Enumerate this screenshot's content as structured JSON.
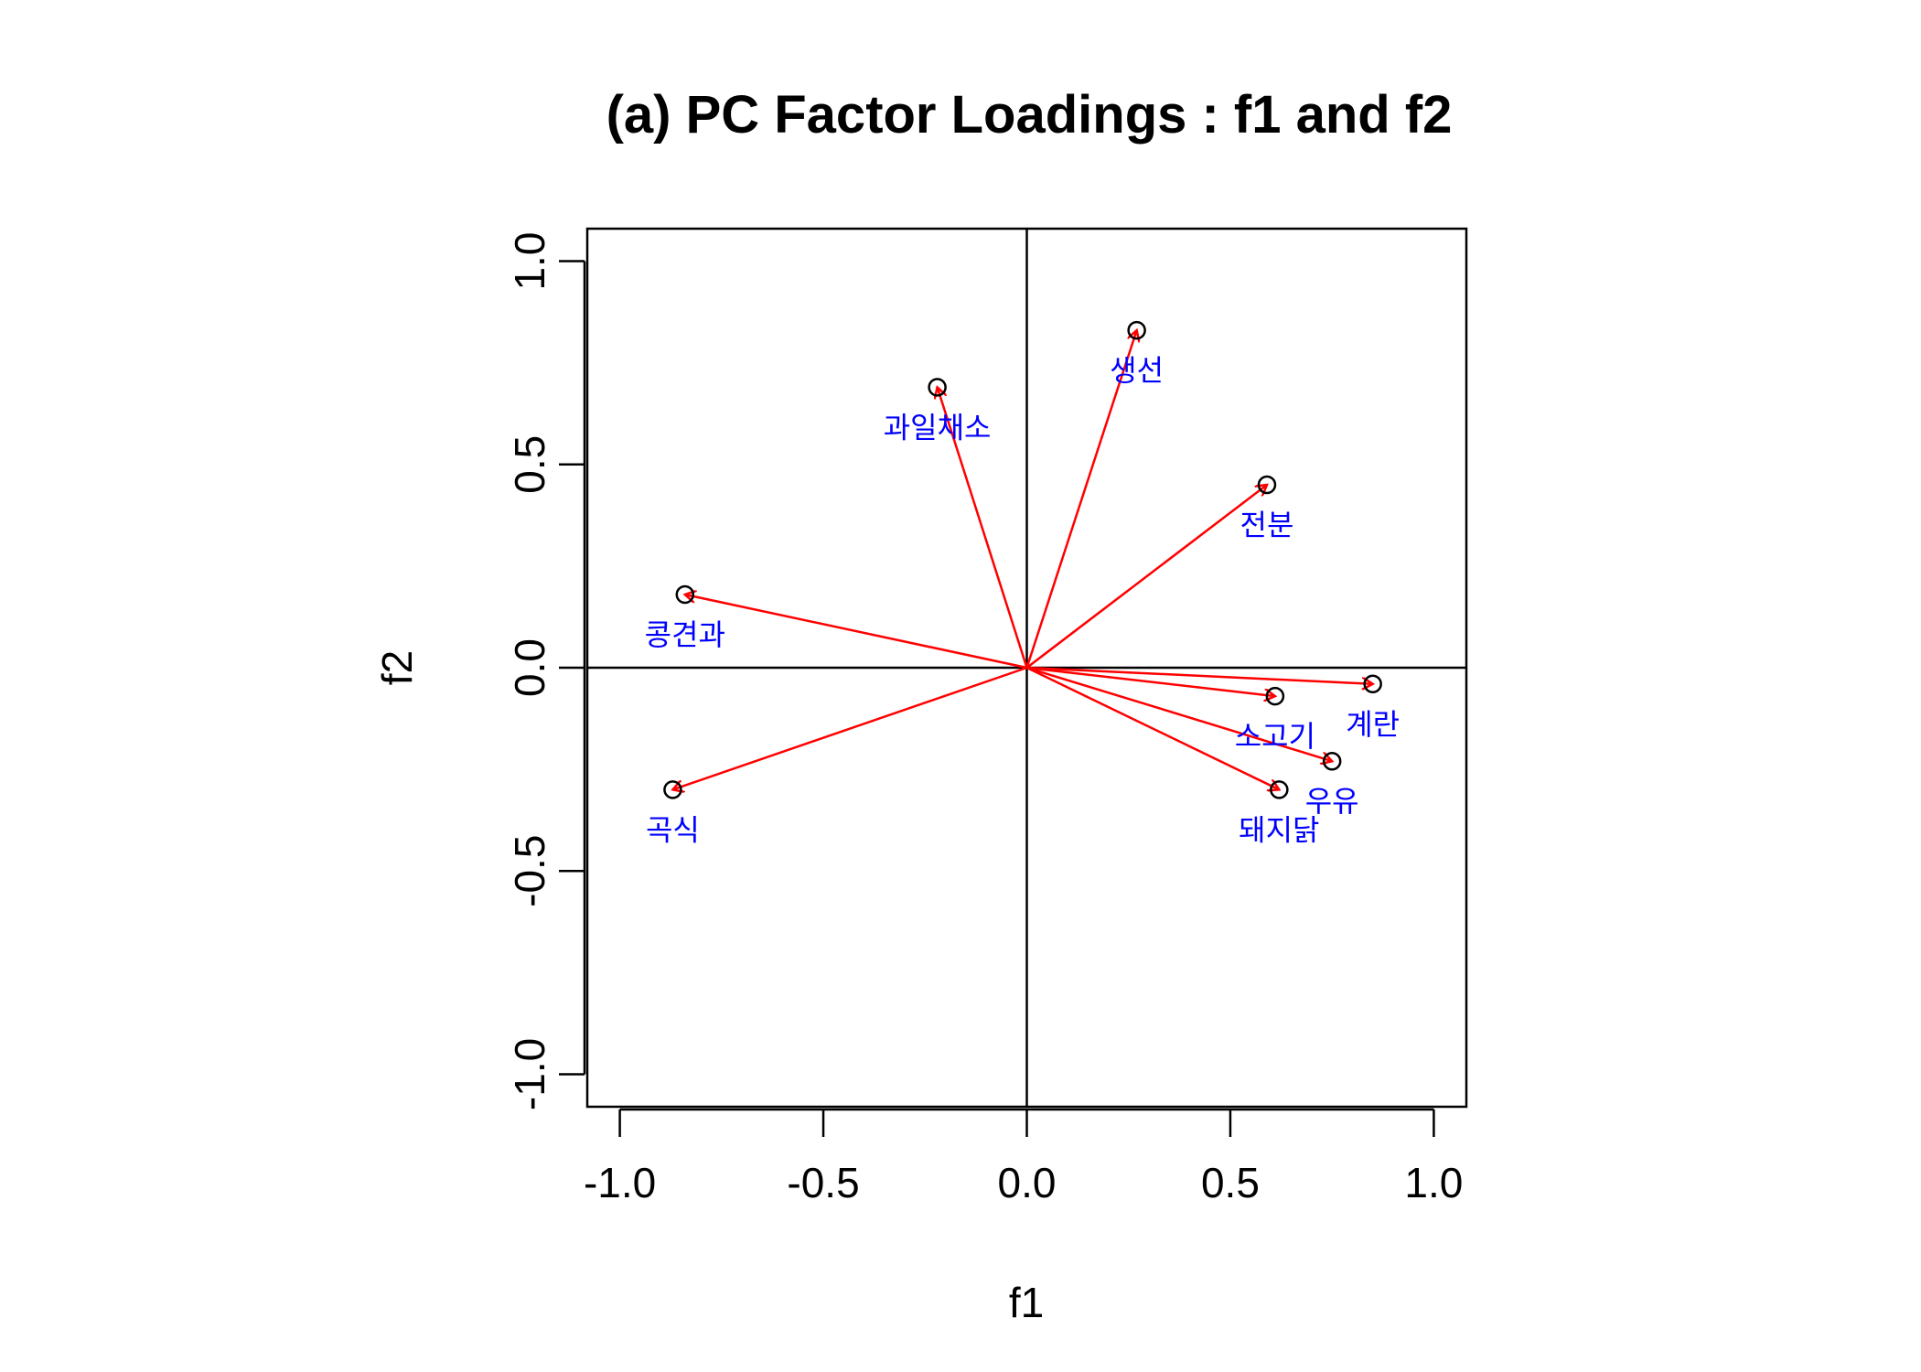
{
  "chart_data": {
    "type": "scatter",
    "title": "(a) PC Factor Loadings : f1 and f2",
    "xlabel": "f1",
    "ylabel": "f2",
    "xlim": [
      -1.08,
      1.08
    ],
    "ylim": [
      -1.08,
      1.08
    ],
    "xticks": [
      -1.0,
      -0.5,
      0.0,
      0.5,
      1.0
    ],
    "yticks": [
      -1.0,
      -0.5,
      0.0,
      0.5,
      1.0
    ],
    "xtick_labels": [
      "-1.0",
      "-0.5",
      "0.0",
      "0.5",
      "1.0"
    ],
    "ytick_labels": [
      "-1.0",
      "-0.5",
      "0.0",
      "0.5",
      "1.0"
    ],
    "reference_lines": {
      "x": 0,
      "y": 0
    },
    "grid": false,
    "colors": {
      "points": "#000000",
      "arrows": "#ff0000",
      "labels": "#0000ff",
      "axes": "#000000"
    },
    "points": [
      {
        "label": "생선",
        "x": 0.27,
        "y": 0.83
      },
      {
        "label": "과일채소",
        "x": -0.22,
        "y": 0.69
      },
      {
        "label": "전분",
        "x": 0.59,
        "y": 0.45
      },
      {
        "label": "콩견과",
        "x": -0.84,
        "y": 0.18
      },
      {
        "label": "계란",
        "x": 0.85,
        "y": -0.04
      },
      {
        "label": "소고기",
        "x": 0.61,
        "y": -0.07
      },
      {
        "label": "우유",
        "x": 0.75,
        "y": -0.23
      },
      {
        "label": "돼지닭",
        "x": 0.62,
        "y": -0.3
      },
      {
        "label": "곡식",
        "x": -0.87,
        "y": -0.3
      }
    ]
  }
}
